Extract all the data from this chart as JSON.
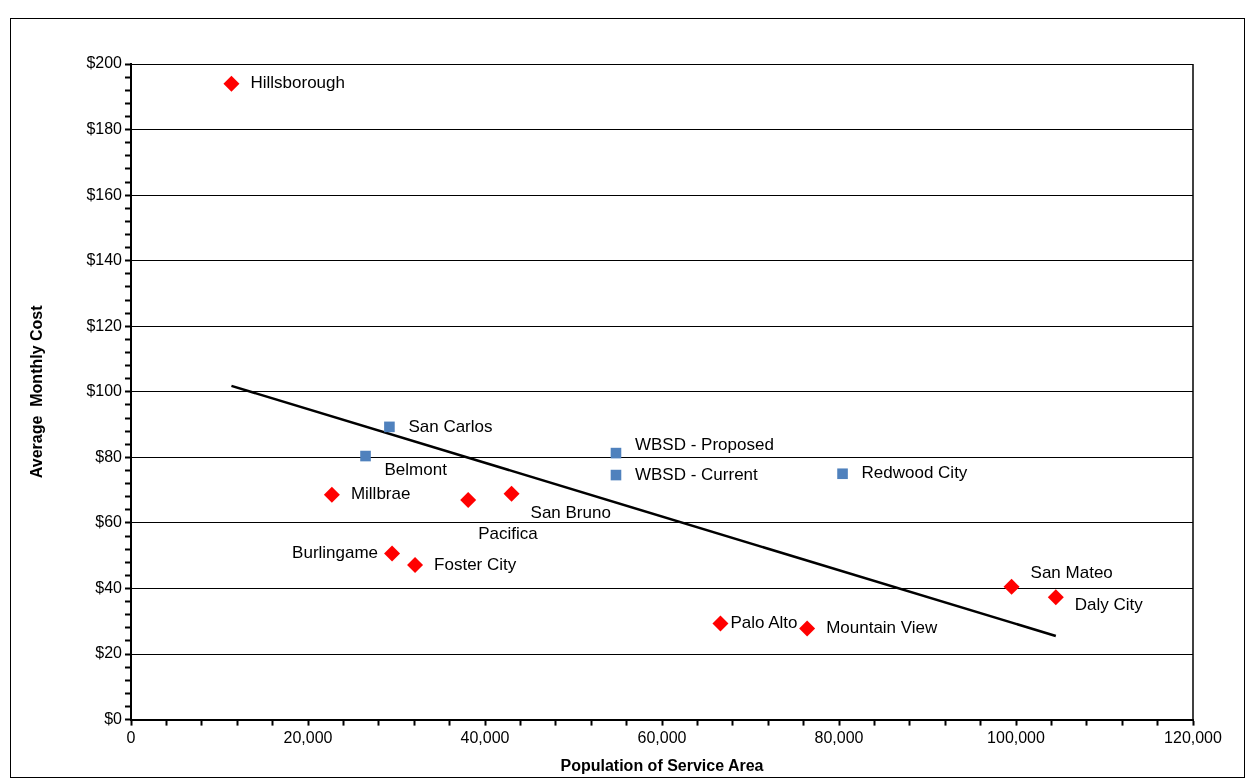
{
  "chart_data": {
    "type": "scatter",
    "xlabel": "Population of Service Area",
    "ylabel": "Average  Monthly Cost",
    "series": [
      {
        "marker": "diamond",
        "color": "#ff0000",
        "x": [
          11350,
          22700,
          38100,
          43000,
          29500,
          32100,
          66600,
          76400,
          99500,
          104500
        ],
        "values": [
          194,
          68.6,
          67,
          68.9,
          50.7,
          47.2,
          29.3,
          27.8,
          40.5,
          37.3
        ]
      },
      {
        "marker": "square",
        "color": "#4f81bd",
        "x": [
          29200,
          26500,
          54800,
          54800,
          80400
        ],
        "values": [
          89.3,
          80.4,
          81.3,
          74.6,
          75
        ]
      },
      {
        "type": "line",
        "marker": "none",
        "color": "#000000",
        "x": [
          11350,
          104500
        ],
        "values": [
          101.8,
          25.5
        ]
      }
    ],
    "annotations": [
      {
        "text": "Hillsborough",
        "x": 11350,
        "y": 194
      },
      {
        "text": "Millbrae",
        "x": 22700,
        "y": 68.6
      },
      {
        "text": "Pacifica",
        "x": 38100,
        "y": 67
      },
      {
        "text": "San Bruno",
        "x": 43000,
        "y": 68.9
      },
      {
        "text": "Burlingame",
        "x": 29500,
        "y": 50.7
      },
      {
        "text": "Foster City",
        "x": 32100,
        "y": 47.2
      },
      {
        "text": "Palo Alto",
        "x": 66600,
        "y": 29.3
      },
      {
        "text": "Mountain View",
        "x": 76400,
        "y": 27.8
      },
      {
        "text": "San Mateo",
        "x": 99500,
        "y": 40.5
      },
      {
        "text": "Daly City",
        "x": 104500,
        "y": 37.3
      },
      {
        "text": "San Carlos",
        "x": 29200,
        "y": 89.3
      },
      {
        "text": "Belmont",
        "x": 26500,
        "y": 80.4
      },
      {
        "text": "WBSD - Proposed",
        "x": 54800,
        "y": 81.3
      },
      {
        "text": "WBSD - Current",
        "x": 54800,
        "y": 74.6
      },
      {
        "text": "Redwood City",
        "x": 80400,
        "y": 75
      }
    ],
    "xlim": [
      0,
      120000
    ],
    "xticks": [
      0,
      {
        "value": 4000,
        "label": null
      },
      {
        "value": 8000,
        "label": null
      },
      {
        "value": 12000,
        "label": null
      },
      {
        "value": 16000,
        "label": null
      },
      {
        "value": 20000,
        "label": "20,000"
      },
      {
        "value": 24000,
        "label": null
      },
      {
        "value": 28000,
        "label": null
      },
      {
        "value": 32000,
        "label": null
      },
      {
        "value": 36000,
        "label": null
      },
      {
        "value": 40000,
        "label": "40,000"
      },
      {
        "value": 44000,
        "label": null
      },
      {
        "value": 48000,
        "label": null
      },
      {
        "value": 52000,
        "label": null
      },
      {
        "value": 56000,
        "label": null
      },
      {
        "value": 60000,
        "label": "60,000"
      },
      {
        "value": 64000,
        "label": null
      },
      {
        "value": 68000,
        "label": null
      },
      {
        "value": 72000,
        "label": null
      },
      {
        "value": 76000,
        "label": null
      },
      {
        "value": 80000,
        "label": "80,000"
      },
      {
        "value": 84000,
        "label": null
      },
      {
        "value": 88000,
        "label": null
      },
      {
        "value": 92000,
        "label": null
      },
      {
        "value": 96000,
        "label": null
      },
      {
        "value": 100000,
        "label": "100,000"
      },
      {
        "value": 104000,
        "label": null
      },
      {
        "value": 108000,
        "label": null
      },
      {
        "value": 112000,
        "label": null
      },
      {
        "value": 116000,
        "label": null
      },
      {
        "value": 120000,
        "label": "120,000"
      }
    ],
    "ylim": [
      0,
      200
    ],
    "yticks": [
      {
        "value": 0,
        "label": "$0"
      },
      {
        "value": 4,
        "label": null
      },
      {
        "value": 8,
        "label": null
      },
      {
        "value": 12,
        "label": null
      },
      {
        "value": 16,
        "label": null
      },
      {
        "value": 20,
        "label": "$20"
      },
      {
        "value": 24,
        "label": null
      },
      {
        "value": 28,
        "label": null
      },
      {
        "value": 32,
        "label": null
      },
      {
        "value": 36,
        "label": null
      },
      {
        "value": 40,
        "label": "$40"
      },
      {
        "value": 44,
        "label": null
      },
      {
        "value": 48,
        "label": null
      },
      {
        "value": 52,
        "label": null
      },
      {
        "value": 56,
        "label": null
      },
      {
        "value": 60,
        "label": "$60"
      },
      {
        "value": 64,
        "label": null
      },
      {
        "value": 68,
        "label": null
      },
      {
        "value": 72,
        "label": null
      },
      {
        "value": 76,
        "label": null
      },
      {
        "value": 80,
        "label": "$80"
      },
      {
        "value": 84,
        "label": null
      },
      {
        "value": 88,
        "label": null
      },
      {
        "value": 92,
        "label": null
      },
      {
        "value": 96,
        "label": null
      },
      {
        "value": 100,
        "label": "$100"
      },
      {
        "value": 104,
        "label": null
      },
      {
        "value": 108,
        "label": null
      },
      {
        "value": 112,
        "label": null
      },
      {
        "value": 116,
        "label": null
      },
      {
        "value": 120,
        "label": "$120"
      },
      {
        "value": 124,
        "label": null
      },
      {
        "value": 128,
        "label": null
      },
      {
        "value": 132,
        "label": null
      },
      {
        "value": 136,
        "label": null
      },
      {
        "value": 140,
        "label": "$140"
      },
      {
        "value": 144,
        "label": null
      },
      {
        "value": 148,
        "label": null
      },
      {
        "value": 152,
        "label": null
      },
      {
        "value": 156,
        "label": null
      },
      {
        "value": 160,
        "label": "$160"
      },
      {
        "value": 164,
        "label": null
      },
      {
        "value": 168,
        "label": null
      },
      {
        "value": 172,
        "label": null
      },
      {
        "value": 176,
        "label": null
      },
      {
        "value": 180,
        "label": "$180"
      },
      {
        "value": 184,
        "label": null
      },
      {
        "value": 188,
        "label": null
      },
      {
        "value": 192,
        "label": null
      },
      {
        "value": 196,
        "label": null
      },
      {
        "value": 200,
        "label": "$200"
      }
    ],
    "grid": "y",
    "legend": false
  }
}
